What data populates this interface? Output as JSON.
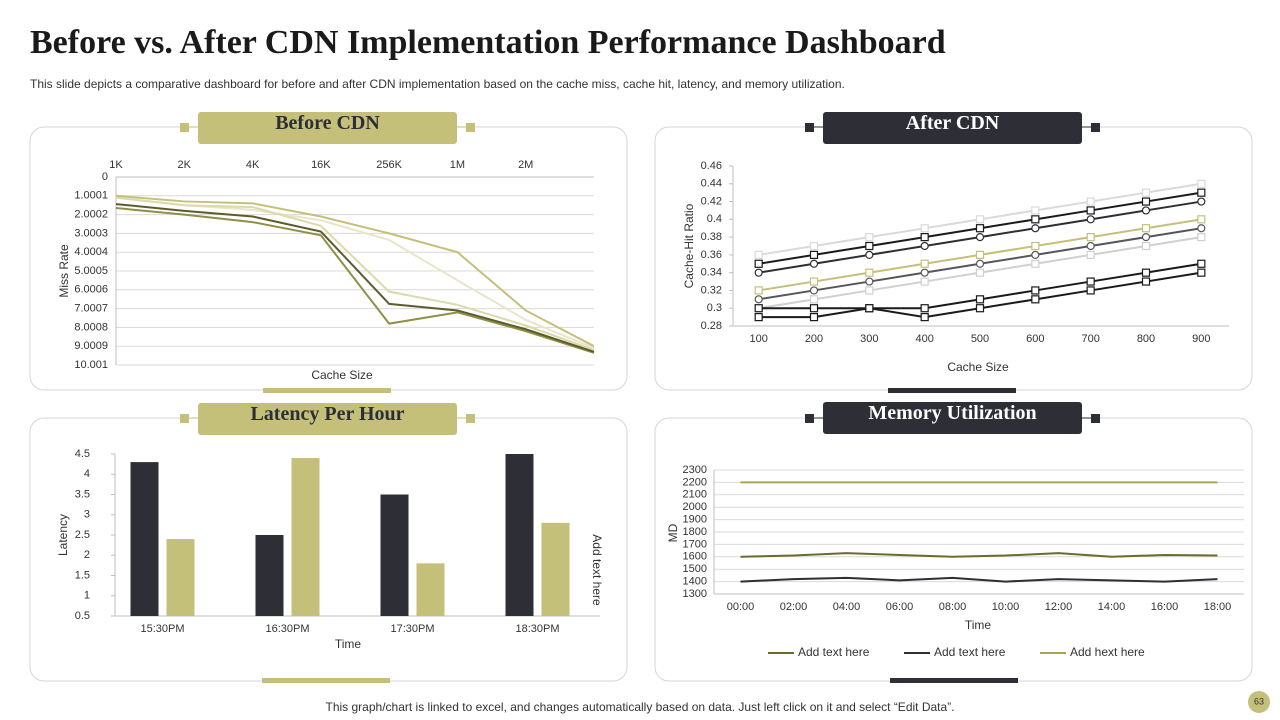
{
  "title": "Before vs. After CDN Implementation Performance Dashboard",
  "subtitle": "This slide depicts a comparative dashboard for before and after CDN implementation based on the cache miss, cache hit, latency, and memory utilization.",
  "footer": "This graph/chart is linked to excel,  and changes automatically based on data. Just left click on it and select “Edit Data”.",
  "page_number": "63",
  "chart_data": [
    {
      "type": "line",
      "title": "Before CDN",
      "x_label": "Cache Size",
      "y_label": "Miss Rate",
      "x_axis_position": "top",
      "y_inverted": true,
      "grid": true,
      "categories": [
        "1K",
        "2K",
        "4K",
        "16K",
        "256K",
        "1M",
        "2M",
        null
      ],
      "ylim": [
        0,
        10.001
      ],
      "yticks": [
        0,
        1.0001,
        2.0002,
        3.0003,
        4.0004,
        5.0005,
        6.0006,
        7.0007,
        8.0008,
        9.0009,
        10.001
      ],
      "series": [
        {
          "color": "#e8e6c8",
          "values": [
            1.1,
            1.5,
            1.75,
            2.3,
            3.35,
            5.5,
            7.6,
            9.1
          ]
        },
        {
          "color": "#dcd9aa",
          "values": [
            1.1,
            1.5,
            1.6,
            2.6,
            6.1,
            6.8,
            7.9,
            9.2
          ]
        },
        {
          "color": "#c4c07a",
          "values": [
            1.0,
            1.3,
            1.4,
            2.1,
            3.0,
            4.0,
            7.1,
            9.0
          ]
        },
        {
          "color": "#8f8f45",
          "values": [
            1.65,
            2.0,
            2.4,
            3.1,
            7.8,
            7.2,
            8.2,
            9.35
          ]
        },
        {
          "color": "#5c5c2e",
          "values": [
            1.44,
            1.8,
            2.1,
            2.9,
            6.75,
            7.1,
            8.1,
            9.3
          ]
        }
      ]
    },
    {
      "type": "line",
      "title": "After CDN",
      "x_label": "Cache Size",
      "y_label": "Cache-Hit  Ratio",
      "grid": false,
      "categories": [
        "100",
        "200",
        "300",
        "400",
        "500",
        "600",
        "700",
        "800",
        "900"
      ],
      "ylim": [
        0.28,
        0.46
      ],
      "yticks": [
        0.28,
        0.3,
        0.32,
        0.34,
        0.36,
        0.38,
        0.4,
        0.42,
        0.44,
        0.46
      ],
      "series": [
        {
          "color": "#d9d9d9",
          "marker": "square",
          "values": [
            0.36,
            0.37,
            0.38,
            0.39,
            0.4,
            0.41,
            0.42,
            0.43,
            0.44
          ]
        },
        {
          "color": "#d0d0d0",
          "marker": "square",
          "values": [
            0.3,
            0.31,
            0.32,
            0.33,
            0.34,
            0.35,
            0.36,
            0.37,
            0.38
          ]
        },
        {
          "color": "#c4c07a",
          "marker": "square",
          "values": [
            0.32,
            0.33,
            0.34,
            0.35,
            0.36,
            0.37,
            0.38,
            0.39,
            0.4
          ]
        },
        {
          "color": "#55565e",
          "marker": "circle",
          "values": [
            0.31,
            0.32,
            0.33,
            0.34,
            0.35,
            0.36,
            0.37,
            0.38,
            0.39
          ]
        },
        {
          "color": "#1a1a1a",
          "marker": "square",
          "values": [
            0.35,
            0.36,
            0.37,
            0.38,
            0.39,
            0.4,
            0.41,
            0.42,
            0.43
          ]
        },
        {
          "color": "#2d2e36",
          "marker": "circle",
          "values": [
            0.34,
            0.35,
            0.36,
            0.37,
            0.38,
            0.39,
            0.4,
            0.41,
            0.42
          ]
        },
        {
          "color": "#1a1a1a",
          "marker": "square",
          "values": [
            0.3,
            0.3,
            0.3,
            0.3,
            0.31,
            0.32,
            0.33,
            0.34,
            0.35
          ]
        },
        {
          "color": "#1a1a1a",
          "marker": "square",
          "values": [
            0.29,
            0.29,
            0.3,
            0.29,
            0.3,
            0.31,
            0.32,
            0.33,
            0.34
          ]
        }
      ]
    },
    {
      "type": "bar",
      "title": "Latency Per Hour",
      "x_label": "Time",
      "y_label": "Latency",
      "annotation": "Add text here",
      "grid": false,
      "categories": [
        "15:30PM",
        "16:30PM",
        "17:30PM",
        "18:30PM"
      ],
      "ylim": [
        0.5,
        4.5
      ],
      "yticks": [
        0.5,
        1,
        1.5,
        2,
        2.5,
        3,
        3.5,
        4,
        4.5
      ],
      "series": [
        {
          "color": "#2d2e36",
          "values": [
            4.3,
            2.5,
            3.5,
            4.5
          ]
        },
        {
          "color": "#c4c07a",
          "values": [
            2.4,
            4.4,
            1.8,
            2.8
          ]
        }
      ]
    },
    {
      "type": "line",
      "title": "Memory Utilization",
      "x_label": "Time",
      "y_label": "MD",
      "grid": true,
      "legend": "bottom",
      "categories": [
        "00:00",
        "02:00",
        "04:00",
        "06:00",
        "08:00",
        "10:00",
        "12:00",
        "14:00",
        "16:00",
        "18:00"
      ],
      "ylim": [
        1300,
        2300
      ],
      "yticks": [
        1300,
        1400,
        1500,
        1600,
        1700,
        1800,
        1900,
        2000,
        2100,
        2200,
        2300
      ],
      "series": [
        {
          "name": "Add text here",
          "color": "#6b6b2e",
          "values": [
            1600,
            1610,
            1630,
            1615,
            1600,
            1610,
            1630,
            1600,
            1615,
            1610
          ]
        },
        {
          "name": "Add text here",
          "color": "#2d2e36",
          "values": [
            1400,
            1420,
            1430,
            1410,
            1430,
            1400,
            1420,
            1410,
            1400,
            1420
          ]
        },
        {
          "name": "Add hext here",
          "color": "#a9a450",
          "values": [
            2200,
            2200,
            2200,
            2200,
            2200,
            2200,
            2200,
            2200,
            2200,
            2200
          ]
        }
      ]
    }
  ]
}
